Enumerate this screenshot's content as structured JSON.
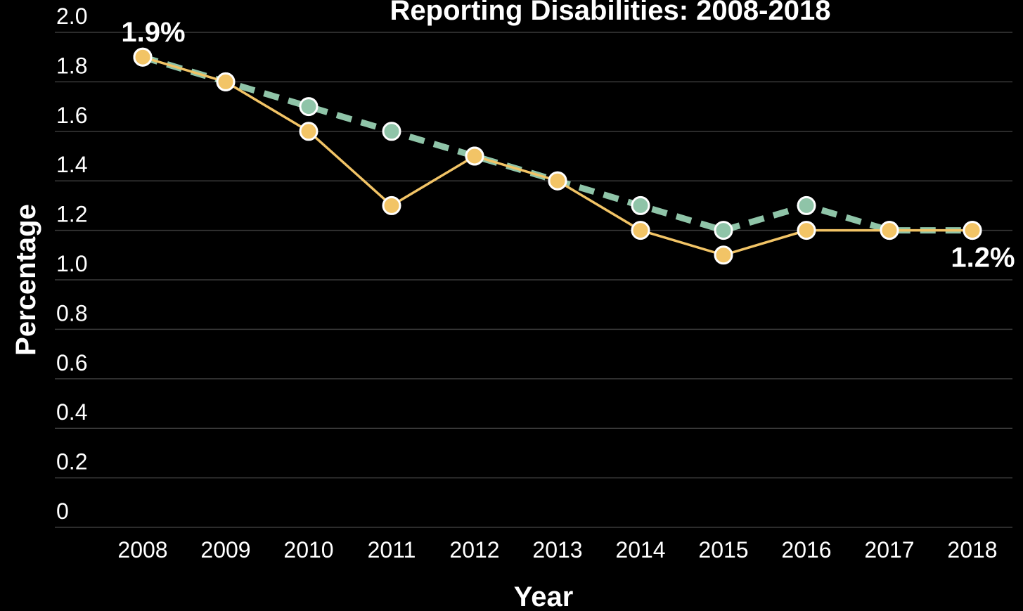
{
  "chart_data": {
    "type": "line",
    "title": "Reporting Disabilities: 2008-2018",
    "xlabel": "Year",
    "ylabel": "Percentage",
    "categories": [
      "2008",
      "2009",
      "2010",
      "2011",
      "2012",
      "2013",
      "2014",
      "2015",
      "2016",
      "2017",
      "2018"
    ],
    "yticks": [
      "0",
      "0.2",
      "0.4",
      "0.6",
      "0.8",
      "1.0",
      "1.2",
      "1.4",
      "1.6",
      "1.8",
      "2.0"
    ],
    "ylim": [
      0,
      2.0
    ],
    "grid": true,
    "series": [
      {
        "style": "dashed",
        "color": "#8fc4a8",
        "values": [
          1.9,
          1.8,
          1.7,
          1.6,
          1.5,
          1.4,
          1.3,
          1.2,
          1.3,
          1.2,
          1.2
        ]
      },
      {
        "style": "solid",
        "color": "#f2c466",
        "values": [
          1.9,
          1.8,
          1.6,
          1.3,
          1.5,
          1.4,
          1.2,
          1.1,
          1.2,
          1.2,
          1.2
        ]
      }
    ],
    "annotations": [
      {
        "text": "1.9%",
        "category": "2008"
      },
      {
        "text": "1.2%",
        "category": "2018"
      }
    ]
  }
}
